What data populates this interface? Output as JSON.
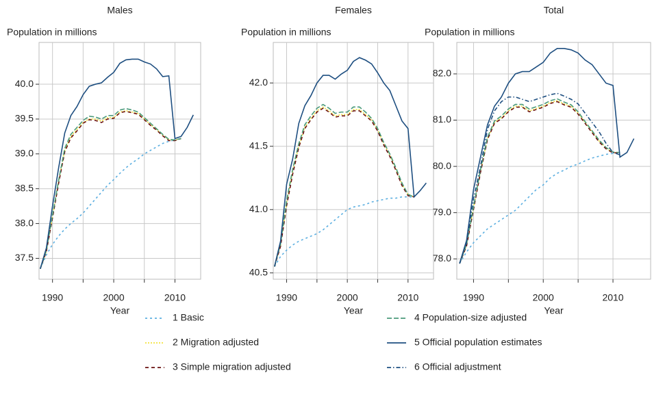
{
  "chart_data": [
    {
      "type": "line",
      "title": "Males",
      "y_label": "Population in millions",
      "x_label": "Year",
      "x": [
        1988,
        1989,
        1990,
        1991,
        1992,
        1993,
        1994,
        1995,
        1996,
        1997,
        1998,
        1999,
        2000,
        2001,
        2002,
        2003,
        2004,
        2005,
        2006,
        2007,
        2008,
        2009,
        2010,
        2011,
        2012,
        2013
      ],
      "xlim": [
        1987.8,
        2014.2
      ],
      "xticks": [
        1990,
        2000,
        2010
      ],
      "xminor": [
        1995,
        2005
      ],
      "ylim": [
        37.2,
        40.6
      ],
      "yticks": [
        37.5,
        {
          "value": 38,
          "label": "38.0"
        },
        38.5,
        {
          "value": 39,
          "label": "39.0"
        },
        39.5,
        {
          "value": 40,
          "label": "40.0"
        }
      ],
      "grid": true,
      "series": [
        {
          "name": "1 Basic",
          "color": "#5aaee0",
          "line_style": "short-dash",
          "values": [
            37.35,
            37.55,
            37.7,
            37.82,
            37.92,
            38.0,
            38.07,
            38.15,
            38.25,
            38.35,
            38.45,
            38.55,
            38.63,
            38.72,
            38.8,
            38.87,
            38.93,
            39.0,
            39.05,
            39.1,
            39.15,
            39.18,
            39.2,
            39.22,
            null,
            null
          ]
        },
        {
          "name": "2 Migration adjusted",
          "color": "#f2e23c",
          "line_style": "dotted",
          "values": [
            37.35,
            37.6,
            38.1,
            38.6,
            39.05,
            39.25,
            39.35,
            39.45,
            39.5,
            39.5,
            39.47,
            39.52,
            39.52,
            39.6,
            39.62,
            39.6,
            39.58,
            39.5,
            39.42,
            39.35,
            39.27,
            39.2,
            39.2,
            39.22,
            null,
            null
          ]
        },
        {
          "name": "3 Simple migration adjusted",
          "color": "#6a1010",
          "line_style": "dashed",
          "values": [
            37.35,
            37.6,
            38.08,
            38.58,
            39.03,
            39.23,
            39.33,
            39.44,
            39.49,
            39.48,
            39.45,
            39.5,
            39.51,
            39.59,
            39.61,
            39.59,
            39.57,
            39.49,
            39.41,
            39.34,
            39.26,
            39.19,
            39.19,
            39.22,
            null,
            null
          ]
        },
        {
          "name": "4 Population-size adjusted",
          "color": "#4a9a7a",
          "line_style": "long-dash",
          "values": [
            37.35,
            37.62,
            38.12,
            38.62,
            39.08,
            39.28,
            39.38,
            39.48,
            39.54,
            39.53,
            39.5,
            39.55,
            39.55,
            39.63,
            39.65,
            39.63,
            39.6,
            39.52,
            39.44,
            39.36,
            39.28,
            39.21,
            39.2,
            39.22,
            null,
            null
          ]
        },
        {
          "name": "5 Official population estimates",
          "color": "#1d4e80",
          "line_style": "solid",
          "values": [
            37.35,
            37.65,
            38.25,
            38.8,
            39.3,
            39.55,
            39.68,
            39.85,
            39.97,
            40.0,
            40.02,
            40.1,
            40.17,
            40.3,
            40.35,
            40.36,
            40.36,
            40.32,
            40.29,
            40.22,
            40.11,
            40.12,
            39.22,
            39.25,
            39.38,
            39.56
          ]
        }
      ]
    },
    {
      "type": "line",
      "title": "Females",
      "y_label": "Population in millions",
      "x_label": "Year",
      "x": [
        1988,
        1989,
        1990,
        1991,
        1992,
        1993,
        1994,
        1995,
        1996,
        1997,
        1998,
        1999,
        2000,
        2001,
        2002,
        2003,
        2004,
        2005,
        2006,
        2007,
        2008,
        2009,
        2010,
        2011,
        2012,
        2013
      ],
      "xlim": [
        1987.8,
        2014.2
      ],
      "xticks": [
        1990,
        2000,
        2010
      ],
      "xminor": [
        1995,
        2005
      ],
      "ylim": [
        40.45,
        42.32
      ],
      "yticks": [
        40.5,
        {
          "value": 41,
          "label": "41.0"
        },
        41.5,
        {
          "value": 42,
          "label": "42.0"
        }
      ],
      "grid": true,
      "series": [
        {
          "name": "1 Basic",
          "color": "#5aaee0",
          "line_style": "short-dash",
          "values": [
            40.55,
            40.63,
            40.68,
            40.72,
            40.75,
            40.77,
            40.79,
            40.81,
            40.84,
            40.88,
            40.92,
            40.96,
            41.0,
            41.02,
            41.03,
            41.04,
            41.06,
            41.07,
            41.08,
            41.09,
            41.09,
            41.1,
            41.1,
            41.1,
            null,
            null
          ]
        },
        {
          "name": "2 Migration adjusted",
          "color": "#f2e23c",
          "line_style": "dotted",
          "values": [
            40.55,
            40.72,
            41.05,
            41.3,
            41.5,
            41.65,
            41.72,
            41.78,
            41.81,
            41.78,
            41.74,
            41.75,
            41.75,
            41.79,
            41.79,
            41.75,
            41.71,
            41.63,
            41.52,
            41.43,
            41.32,
            41.2,
            41.12,
            41.1,
            null,
            null
          ]
        },
        {
          "name": "3 Simple migration adjusted",
          "color": "#6a1010",
          "line_style": "dashed",
          "values": [
            40.55,
            40.71,
            41.03,
            41.28,
            41.49,
            41.64,
            41.71,
            41.77,
            41.8,
            41.77,
            41.73,
            41.74,
            41.74,
            41.78,
            41.78,
            41.74,
            41.7,
            41.62,
            41.51,
            41.42,
            41.31,
            41.19,
            41.11,
            41.1,
            null,
            null
          ]
        },
        {
          "name": "4 Population-size adjusted",
          "color": "#4a9a7a",
          "line_style": "long-dash",
          "values": [
            40.55,
            40.73,
            41.07,
            41.32,
            41.52,
            41.67,
            41.74,
            41.8,
            41.83,
            41.8,
            41.76,
            41.77,
            41.77,
            41.81,
            41.81,
            41.77,
            41.72,
            41.64,
            41.53,
            41.44,
            41.33,
            41.21,
            41.12,
            41.1,
            null,
            null
          ]
        },
        {
          "name": "5 Official population estimates",
          "color": "#1d4e80",
          "line_style": "solid",
          "values": [
            40.55,
            40.75,
            41.2,
            41.4,
            41.68,
            41.82,
            41.9,
            42.0,
            42.06,
            42.06,
            42.03,
            42.07,
            42.1,
            42.17,
            42.2,
            42.18,
            42.15,
            42.08,
            42.0,
            41.94,
            41.82,
            41.7,
            41.64,
            41.1,
            41.15,
            41.21
          ]
        }
      ]
    },
    {
      "type": "line",
      "title": "Total",
      "y_label": "Population in millions",
      "x_label": "Year",
      "x": [
        1988,
        1989,
        1990,
        1991,
        1992,
        1993,
        1994,
        1995,
        1996,
        1997,
        1998,
        1999,
        2000,
        2001,
        2002,
        2003,
        2004,
        2005,
        2006,
        2007,
        2008,
        2009,
        2010,
        2011,
        2012,
        2013
      ],
      "xlim": [
        1987.6,
        2015.4
      ],
      "xticks": [
        1990,
        2000,
        2010
      ],
      "xminor": [
        1995,
        2005
      ],
      "ylim": [
        77.56,
        82.68
      ],
      "yticks": [
        {
          "value": 78,
          "label": "78.0"
        },
        {
          "value": 79,
          "label": "79.0"
        },
        {
          "value": 80,
          "label": "80.0"
        },
        {
          "value": 81,
          "label": "81.0"
        },
        {
          "value": 82,
          "label": "82.0"
        }
      ],
      "grid": true,
      "series": [
        {
          "name": "1 Basic",
          "color": "#5aaee0",
          "line_style": "short-dash",
          "values": [
            77.9,
            78.15,
            78.35,
            78.5,
            78.65,
            78.75,
            78.85,
            78.95,
            79.05,
            79.2,
            79.35,
            79.5,
            79.6,
            79.75,
            79.85,
            79.92,
            80.0,
            80.05,
            80.12,
            80.18,
            80.22,
            80.26,
            80.28,
            80.3,
            null,
            null
          ]
        },
        {
          "name": "2 Migration adjusted",
          "color": "#f2e23c",
          "line_style": "dotted",
          "values": [
            77.9,
            78.3,
            79.1,
            79.9,
            80.6,
            80.95,
            81.05,
            81.2,
            81.3,
            81.3,
            81.2,
            81.25,
            81.3,
            81.38,
            81.42,
            81.35,
            81.3,
            81.15,
            80.95,
            80.75,
            80.55,
            80.4,
            80.3,
            80.3,
            null,
            null
          ]
        },
        {
          "name": "3 Simple migration adjusted",
          "color": "#6a1010",
          "line_style": "dashed",
          "values": [
            77.9,
            78.28,
            79.07,
            79.87,
            80.58,
            80.93,
            81.03,
            81.18,
            81.28,
            81.28,
            81.18,
            81.23,
            81.28,
            81.36,
            81.4,
            81.33,
            81.28,
            81.13,
            80.93,
            80.73,
            80.53,
            80.38,
            80.29,
            80.3,
            null,
            null
          ]
        },
        {
          "name": "4 Population-size adjusted",
          "color": "#4a9a7a",
          "line_style": "long-dash",
          "values": [
            77.9,
            78.32,
            79.13,
            79.93,
            80.63,
            80.98,
            81.09,
            81.24,
            81.34,
            81.34,
            81.24,
            81.29,
            81.34,
            81.42,
            81.46,
            81.39,
            81.33,
            81.18,
            80.97,
            80.77,
            80.57,
            80.41,
            80.31,
            80.3,
            null,
            null
          ]
        },
        {
          "name": "5 Official population estimates",
          "color": "#1d4e80",
          "line_style": "solid",
          "values": [
            77.9,
            78.4,
            79.5,
            80.2,
            80.9,
            81.3,
            81.5,
            81.8,
            82.0,
            82.05,
            82.05,
            82.15,
            82.25,
            82.45,
            82.55,
            82.55,
            82.52,
            82.45,
            82.3,
            82.2,
            82.0,
            81.8,
            81.75,
            80.2,
            80.3,
            80.6
          ]
        },
        {
          "name": "6 Official adjustment",
          "color": "#1d4e80",
          "line_style": "dash-dot",
          "values": [
            77.9,
            78.35,
            79.3,
            80.0,
            80.8,
            81.2,
            81.4,
            81.5,
            81.5,
            81.45,
            81.4,
            81.45,
            81.5,
            81.55,
            81.58,
            81.52,
            81.45,
            81.35,
            81.15,
            80.95,
            80.75,
            80.5,
            80.3,
            80.25,
            null,
            null
          ]
        }
      ]
    }
  ]
}
